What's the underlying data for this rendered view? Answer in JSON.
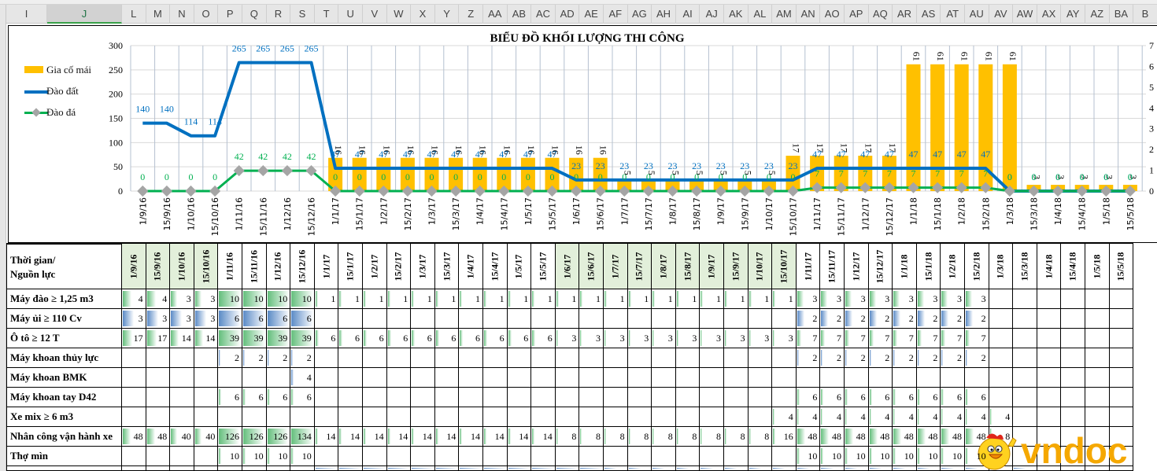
{
  "spreadsheet": {
    "column_headers": [
      "I",
      "J",
      "L",
      "M",
      "N",
      "O",
      "P",
      "Q",
      "R",
      "S",
      "T",
      "U",
      "V",
      "W",
      "X",
      "Y",
      "Z",
      "AA",
      "AB",
      "AC",
      "AD",
      "AE",
      "AF",
      "AG",
      "AH",
      "AI",
      "AJ",
      "AK",
      "AL",
      "AM",
      "AN",
      "AO",
      "AP",
      "AQ",
      "AR",
      "AS",
      "AT",
      "AU",
      "AV",
      "AW",
      "AX",
      "AY",
      "AZ",
      "BA",
      "B"
    ],
    "active_column": "J"
  },
  "chart_data": {
    "type": "bar",
    "title": "BIỂU ĐỒ KHỐI LƯỢNG THI CÔNG",
    "categories": [
      "1/9/16",
      "15/9/16",
      "1/10/16",
      "15/10/16",
      "1/11/16",
      "15/11/16",
      "1/12/16",
      "15/12/16",
      "1/1/17",
      "15/1/17",
      "1/2/17",
      "15/2/17",
      "1/3/17",
      "15/3/17",
      "1/4/17",
      "15/4/17",
      "1/5/17",
      "15/5/17",
      "1/6/17",
      "15/6/17",
      "1/7/17",
      "15/7/17",
      "1/8/17",
      "15/8/17",
      "1/9/17",
      "15/9/17",
      "1/10/17",
      "15/10/17",
      "1/11/17",
      "15/11/17",
      "1/12/17",
      "15/12/17",
      "1/1/18",
      "15/1/18",
      "1/2/18",
      "15/2/18",
      "1/3/18",
      "15/3/18",
      "1/4/18",
      "15/4/18",
      "1/5/18",
      "15/5/18"
    ],
    "series": [
      {
        "name": "Gia cố mái",
        "type": "bar",
        "axis": "secondary",
        "color": "#ffc000",
        "values": [
          0,
          0,
          0,
          0,
          0,
          0,
          0,
          0,
          1.6,
          1.6,
          1.6,
          1.6,
          1.6,
          1.6,
          1.6,
          1.6,
          1.6,
          1.6,
          1.6,
          1.6,
          0.5,
          0.5,
          0.5,
          0.5,
          0.5,
          0.5,
          0.5,
          1.7,
          1.7,
          1.7,
          1.7,
          1.7,
          6.1,
          6.1,
          6.1,
          6.1,
          6.1,
          0.3,
          0.3,
          0.3,
          0.3,
          0.3
        ],
        "labels": [
          "",
          "",
          "",
          "",
          "",
          "",
          "",
          "",
          "16",
          "16",
          "16",
          "16",
          "16",
          "16",
          "16",
          "16",
          "16",
          "16",
          "16",
          "16",
          "5",
          "5",
          "5",
          "5",
          "5",
          "5",
          "5",
          "17",
          "17",
          "17",
          "17",
          "17",
          "61",
          "61",
          "61",
          "61",
          "61",
          "3",
          "3",
          "3",
          "3",
          "3"
        ]
      },
      {
        "name": "Đào đất",
        "type": "line",
        "axis": "primary",
        "color": "#0070c0",
        "values": [
          140,
          140,
          114,
          114,
          265,
          265,
          265,
          265,
          47,
          47,
          47,
          47,
          47,
          47,
          47,
          47,
          47,
          47,
          23,
          23,
          23,
          23,
          23,
          23,
          23,
          23,
          23,
          23,
          47,
          47,
          47,
          47,
          47,
          47,
          47,
          47,
          0,
          0,
          0,
          0,
          0,
          0
        ]
      },
      {
        "name": "Đào đá",
        "type": "line",
        "axis": "primary",
        "color": "#00b050",
        "marker": "diamond",
        "marker_color": "#a5a5a5",
        "values": [
          0,
          0,
          0,
          0,
          42,
          42,
          42,
          42,
          0,
          0,
          0,
          0,
          0,
          0,
          0,
          0,
          0,
          0,
          0,
          0,
          0,
          0,
          0,
          0,
          0,
          0,
          0,
          0,
          7,
          7,
          7,
          7,
          7,
          7,
          7,
          7,
          0,
          0,
          0,
          0,
          0,
          0
        ]
      }
    ],
    "ylim": [
      0,
      300
    ],
    "yticks": [
      0,
      50,
      100,
      150,
      200,
      250,
      300
    ],
    "y2lim": [
      0,
      7
    ],
    "y2ticks": [
      0,
      1,
      2,
      3,
      4,
      5,
      6,
      7
    ],
    "legend_position": "left",
    "grid": true
  },
  "table": {
    "corner_label_1": "Thời gian/",
    "corner_label_2": "Nguồn lực",
    "dates": [
      "1/9/16",
      "15/9/16",
      "1/10/16",
      "15/10/16",
      "1/11/16",
      "15/11/16",
      "1/12/16",
      "15/12/16",
      "1/1/17",
      "15/1/17",
      "1/2/17",
      "15/2/17",
      "1/3/17",
      "15/3/17",
      "1/4/17",
      "15/4/17",
      "1/5/17",
      "15/5/17",
      "1/6/17",
      "15/6/17",
      "1/7/17",
      "15/7/17",
      "1/8/17",
      "15/8/17",
      "1/9/17",
      "15/9/17",
      "1/10/17",
      "15/10/17",
      "1/11/17",
      "15/11/17",
      "1/12/17",
      "15/12/17",
      "1/1/18",
      "15/1/18",
      "1/2/18",
      "15/2/18",
      "1/3/18",
      "15/3/18",
      "1/4/18",
      "15/4/18",
      "1/5/18",
      "15/5/18"
    ],
    "rows": [
      {
        "label": "Máy đào ≥ 1,25 m3",
        "bar": "g",
        "max": 10,
        "values": [
          4,
          4,
          3,
          3,
          10,
          10,
          10,
          10,
          1,
          1,
          1,
          1,
          1,
          1,
          1,
          1,
          1,
          1,
          1,
          1,
          1,
          1,
          1,
          1,
          1,
          1,
          1,
          1,
          3,
          3,
          3,
          3,
          3,
          3,
          3,
          3,
          null,
          null,
          null,
          null,
          null,
          null
        ]
      },
      {
        "label": "Máy ủi ≥ 110 Cv",
        "bar": "b",
        "max": 6,
        "values": [
          3,
          3,
          3,
          3,
          6,
          6,
          6,
          6,
          null,
          null,
          null,
          null,
          null,
          null,
          null,
          null,
          null,
          null,
          null,
          null,
          null,
          null,
          null,
          null,
          null,
          null,
          null,
          null,
          2,
          2,
          2,
          2,
          2,
          2,
          2,
          2,
          null,
          null,
          null,
          null,
          null,
          null
        ]
      },
      {
        "label": "Ô tô ≥ 12 T",
        "bar": "g",
        "max": 39,
        "values": [
          17,
          17,
          14,
          14,
          39,
          39,
          39,
          39,
          6,
          6,
          6,
          6,
          6,
          6,
          6,
          6,
          6,
          6,
          3,
          3,
          3,
          3,
          3,
          3,
          3,
          3,
          3,
          3,
          7,
          7,
          7,
          7,
          7,
          7,
          7,
          7,
          null,
          null,
          null,
          null,
          null,
          null
        ]
      },
      {
        "label": "Máy khoan thủy lực",
        "bar": "b",
        "max": 40,
        "values": [
          null,
          null,
          null,
          null,
          2,
          2,
          2,
          2,
          null,
          null,
          null,
          null,
          null,
          null,
          null,
          null,
          null,
          null,
          null,
          null,
          null,
          null,
          null,
          null,
          null,
          null,
          null,
          null,
          2,
          2,
          2,
          2,
          2,
          2,
          2,
          2,
          null,
          null,
          null,
          null,
          null,
          null
        ]
      },
      {
        "label": "Máy khoan BMK",
        "bar": "b",
        "max": 40,
        "values": [
          null,
          null,
          null,
          null,
          null,
          null,
          null,
          4,
          null,
          null,
          null,
          null,
          null,
          null,
          null,
          null,
          null,
          null,
          null,
          null,
          null,
          null,
          null,
          null,
          null,
          null,
          null,
          null,
          null,
          null,
          null,
          null,
          null,
          null,
          null,
          null,
          null,
          null,
          null,
          null,
          null,
          null
        ]
      },
      {
        "label": "Máy khoan tay D42",
        "bar": "g",
        "max": 60,
        "values": [
          null,
          null,
          null,
          null,
          6,
          6,
          6,
          6,
          null,
          null,
          null,
          null,
          null,
          null,
          null,
          null,
          null,
          null,
          null,
          null,
          null,
          null,
          null,
          null,
          null,
          null,
          null,
          null,
          6,
          6,
          6,
          6,
          6,
          6,
          6,
          6,
          null,
          null,
          null,
          null,
          null,
          null
        ]
      },
      {
        "label": "Xe mix ≥ 6 m3",
        "bar": "g",
        "max": 60,
        "values": [
          null,
          null,
          null,
          null,
          null,
          null,
          null,
          null,
          null,
          null,
          null,
          null,
          null,
          null,
          null,
          null,
          null,
          null,
          null,
          null,
          null,
          null,
          null,
          null,
          null,
          null,
          null,
          4,
          4,
          4,
          4,
          4,
          4,
          4,
          4,
          4,
          4,
          null,
          null,
          null,
          null,
          null
        ]
      },
      {
        "label": "Nhân công vận hành xe",
        "bar": "g",
        "max": 134,
        "values": [
          48,
          48,
          40,
          40,
          126,
          126,
          126,
          134,
          14,
          14,
          14,
          14,
          14,
          14,
          14,
          14,
          14,
          14,
          8,
          8,
          8,
          8,
          8,
          8,
          8,
          8,
          8,
          16,
          48,
          48,
          48,
          48,
          48,
          48,
          48,
          48,
          8,
          null,
          null,
          null,
          null,
          null
        ]
      },
      {
        "label": "Thợ mìn",
        "bar": "g",
        "max": 100,
        "values": [
          null,
          null,
          null,
          null,
          10,
          10,
          10,
          10,
          null,
          null,
          null,
          null,
          null,
          null,
          null,
          null,
          null,
          null,
          null,
          null,
          null,
          null,
          null,
          null,
          null,
          null,
          null,
          null,
          10,
          10,
          10,
          10,
          10,
          10,
          10,
          10,
          null,
          null,
          null,
          null,
          null,
          null
        ]
      }
    ],
    "green_header_ranges": [
      [
        0,
        3
      ],
      [
        18,
        27
      ]
    ]
  },
  "watermark": {
    "text": "vndoc"
  }
}
